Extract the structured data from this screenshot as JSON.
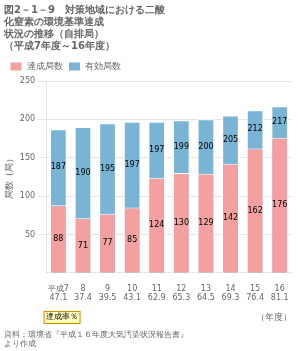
{
  "chart_data": {
    "type": "bar",
    "title": [
      "図2－1－9　対策地域における二酸",
      "化窒素の環境基準達成",
      "状況の推移（自排局）",
      "（平成7年度～16年度）"
    ],
    "source": [
      "資料：環境省『平成１６年度大気汚染状況報告書』",
      "より作成"
    ],
    "categories": [
      "平成7",
      "8",
      "9",
      "10",
      "11",
      "12",
      "13",
      "14",
      "15",
      "16"
    ],
    "series": [
      {
        "name": "達成局数",
        "color": "#f4a0a0",
        "values": [
          88,
          71,
          77,
          85,
          124,
          130,
          129,
          142,
          162,
          176
        ]
      },
      {
        "name": "有効局数",
        "color": "#7ab4d4",
        "values": [
          187,
          190,
          195,
          197,
          197,
          199,
          200,
          205,
          212,
          217
        ]
      }
    ],
    "rates": [
      47.1,
      37.4,
      39.5,
      43.1,
      62.9,
      65.3,
      64.5,
      69.3,
      76.4,
      81.1
    ],
    "rates_label": "達成率％",
    "xlabel": "（年度）",
    "ylabel": "局数（局）",
    "ylim": [
      0,
      250
    ],
    "yticks": [
      50,
      100,
      150,
      200,
      250
    ],
    "grid": true,
    "legend": "upper left",
    "data_labels": true
  }
}
